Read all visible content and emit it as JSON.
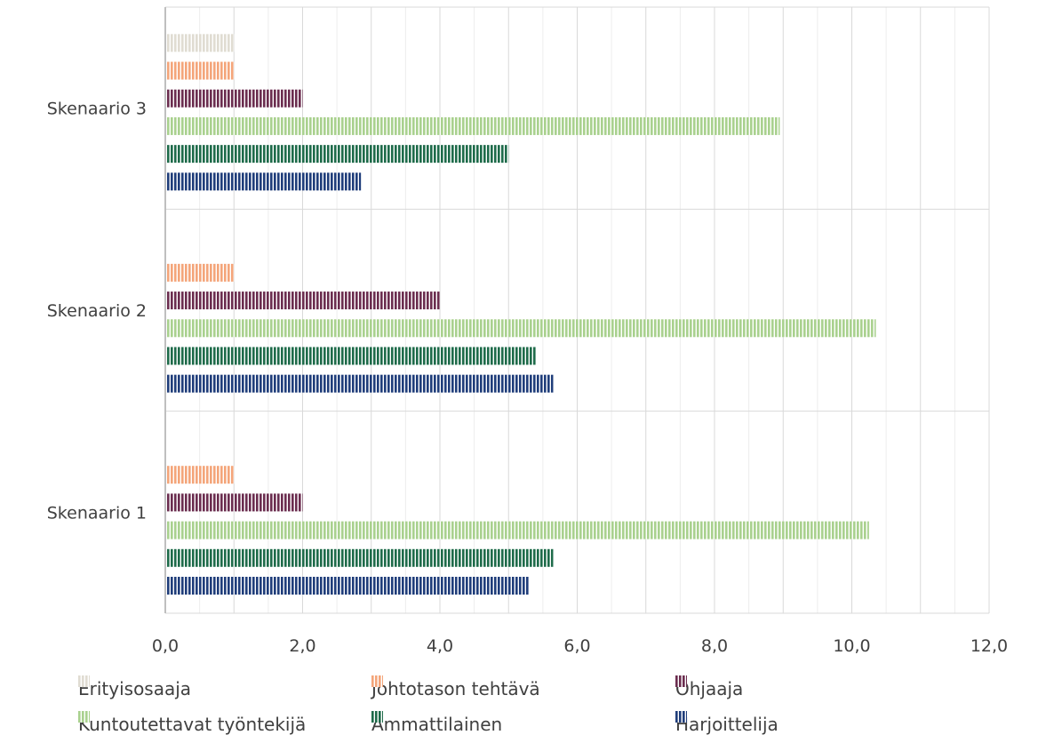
{
  "chart_data": {
    "type": "bar",
    "orientation": "horizontal",
    "bar_style": "vertical-stripes",
    "categories": [
      "Skenaario 1",
      "Skenaario 2",
      "Skenaario 3"
    ],
    "series": [
      {
        "name": "Harjoittelija",
        "color": "#1f3d7a",
        "values": [
          5.3,
          5.65,
          2.85
        ]
      },
      {
        "name": "Ammattilainen",
        "color": "#1e6b4a",
        "values": [
          5.65,
          5.4,
          5.0
        ]
      },
      {
        "name": "Kuntoutettavat työntekijä",
        "color": "#a9d18e",
        "values": [
          10.25,
          10.35,
          8.95
        ]
      },
      {
        "name": "Ohjaaja",
        "color": "#6b2d4f",
        "values": [
          2.0,
          4.0,
          2.0
        ]
      },
      {
        "name": "Johtotason tehtävä",
        "color": "#f4a57a",
        "values": [
          1.0,
          1.0,
          1.0
        ]
      },
      {
        "name": "Erityisosaaja",
        "color": "#e0dcd2",
        "values": [
          null,
          null,
          1.0
        ]
      }
    ],
    "xlim": [
      0,
      12
    ],
    "x_ticks": [
      "0,0",
      "2,0",
      "4,0",
      "6,0",
      "8,0",
      "10,0",
      "12,0"
    ],
    "grid": true,
    "legend_position": "bottom",
    "legend_rows": [
      [
        "Erityisosaaja",
        "Johtotason tehtävä",
        "Ohjaaja"
      ],
      [
        "Kuntoutettavat työntekijä",
        "Ammattilainen",
        "Harjoittelija"
      ]
    ]
  }
}
